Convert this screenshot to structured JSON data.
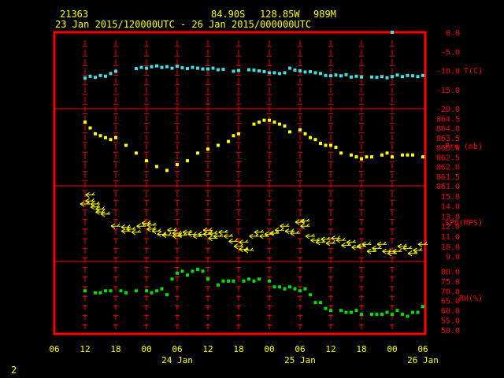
{
  "header": {
    "station": "21363",
    "lat": "84.90S",
    "lon": "128.85W",
    "elev": "989M",
    "range": "23 Jan 2015/120000UTC - 26 Jan 2015/000000UTC"
  },
  "page_number": "2",
  "colors": {
    "frame": "#ff0000",
    "grid": "#ff0000",
    "temp": "#40e0e0",
    "pressure": "#ffff00",
    "wind": "#ffff00",
    "rh": "#00e000",
    "text_red": "#ff0000",
    "text_yellow": "#ffff00"
  },
  "x_axis": {
    "ticks": [
      "06",
      "12",
      "18",
      "00",
      "06",
      "12",
      "18",
      "00",
      "06",
      "12",
      "18",
      "00",
      "06"
    ],
    "day_labels": [
      {
        "text": "24 Jan",
        "hour": 18
      },
      {
        "text": "25 Jan",
        "hour": 42
      },
      {
        "text": "26 Jan",
        "hour": 66
      }
    ]
  },
  "chart_data": [
    {
      "type": "scatter",
      "name": "T(C)",
      "ylabel": "T(C)",
      "ylim": [
        -20,
        0
      ],
      "yticks": [
        "0.0",
        "-5.0",
        "-10.0",
        "-15.0"
      ],
      "x": [
        0,
        1,
        2,
        3,
        4,
        5,
        6,
        10,
        11,
        12,
        13,
        14,
        15,
        16,
        17,
        18,
        19,
        20,
        21,
        22,
        23,
        24,
        25,
        26,
        27,
        29,
        30,
        32,
        33,
        34,
        35,
        36,
        37,
        38,
        39,
        40,
        41,
        42,
        43,
        44,
        45,
        46,
        47,
        48,
        49,
        50,
        51,
        52,
        53,
        54,
        56,
        57,
        58,
        59,
        60,
        61,
        62,
        63,
        64,
        65,
        66
      ],
      "y": [
        -12,
        -11.5,
        -11.8,
        -11.3,
        -11.5,
        -10.8,
        -10.2,
        -9.5,
        -9.2,
        -9.4,
        -9.0,
        -8.8,
        -9.2,
        -9.0,
        -9.4,
        -8.9,
        -9.3,
        -9.5,
        -9.2,
        -9.4,
        -9.6,
        -9.6,
        -9.4,
        -9.8,
        -9.7,
        -10.2,
        -10.0,
        -9.8,
        -9.9,
        -10.1,
        -10.3,
        -10.6,
        -10.6,
        -10.8,
        -10.6,
        -9.4,
        -9.9,
        -10.1,
        -10.4,
        -10.3,
        -10.6,
        -10.8,
        -11.3,
        -11.4,
        -11.2,
        -11.4,
        -11.1,
        -11.7,
        -11.5,
        -11.7,
        -11.7,
        -11.8,
        -11.6,
        -11.9,
        -11.6,
        -11.2,
        -11.6,
        -11.3,
        -11.4,
        -11.6,
        -11.3
      ],
      "outlier": {
        "x": 60,
        "y": 0
      }
    },
    {
      "type": "scatter",
      "name": "Pre (mb)",
      "ylabel": "Pre (mb)",
      "ylim": [
        861,
        865
      ],
      "yticks": [
        "864.5",
        "864.0",
        "863.5",
        "863.0",
        "862.5",
        "862.0",
        "861.5",
        "861.0"
      ],
      "x": [
        0,
        1,
        2,
        3,
        4,
        5,
        6,
        8,
        10,
        12,
        14,
        16,
        18,
        20,
        22,
        24,
        26,
        28,
        29,
        30,
        33,
        34,
        35,
        36,
        37,
        38,
        39,
        40,
        42,
        43,
        44,
        45,
        46,
        47,
        48,
        49,
        50,
        52,
        53,
        54,
        55,
        56,
        58,
        59,
        60,
        62,
        63,
        64,
        66
      ],
      "y": [
        864.3,
        864.0,
        863.7,
        863.6,
        863.5,
        863.4,
        863.5,
        863.1,
        862.7,
        862.3,
        862.0,
        861.8,
        862.1,
        862.3,
        862.7,
        862.9,
        863.1,
        863.3,
        863.6,
        863.7,
        864.2,
        864.3,
        864.4,
        864.4,
        864.3,
        864.2,
        864.1,
        863.8,
        863.9,
        863.7,
        863.5,
        863.4,
        863.2,
        863.1,
        863.1,
        863.0,
        862.7,
        862.6,
        862.5,
        862.4,
        862.5,
        862.5,
        862.6,
        862.7,
        862.5,
        862.6,
        862.6,
        862.6,
        862.5
      ]
    },
    {
      "type": "scatter",
      "name": "SPD(MPS)",
      "ylabel": "SPD(MPS)",
      "ylim": [
        8.5,
        16
      ],
      "yticks": [
        "15.0",
        "14.0",
        "13.0",
        "12.0",
        "11.0",
        "10.0",
        "9.0"
      ],
      "x": [
        0,
        1,
        1,
        2,
        2,
        3,
        3,
        4,
        6,
        8,
        8,
        9,
        10,
        11,
        12,
        13,
        13,
        14,
        15,
        16,
        17,
        18,
        18,
        19,
        20,
        21,
        22,
        23,
        24,
        24,
        25,
        25,
        26,
        27,
        28,
        29,
        30,
        31,
        31,
        32,
        33,
        34,
        35,
        36,
        37,
        38,
        39,
        40,
        41,
        42,
        43,
        43,
        44,
        45,
        46,
        47,
        48,
        49,
        50,
        51,
        52,
        53,
        54,
        55,
        56,
        57,
        58,
        59,
        60,
        61,
        62,
        63,
        64,
        65,
        66
      ],
      "y": [
        14.2,
        15.1,
        14.5,
        14.2,
        13.9,
        13.7,
        13.4,
        13.2,
        12.0,
        11.5,
        11.9,
        11.7,
        11.4,
        12.0,
        12.3,
        12.1,
        11.7,
        11.5,
        11.2,
        11.1,
        11.6,
        11.3,
        11.0,
        11.1,
        11.4,
        11.2,
        11.0,
        11.2,
        11.6,
        11.2,
        11.3,
        10.8,
        11.0,
        11.4,
        11.0,
        10.5,
        10.0,
        10.4,
        9.7,
        9.6,
        11.0,
        11.4,
        11.0,
        11.2,
        11.3,
        11.6,
        12.0,
        11.5,
        11.3,
        12.4,
        12.0,
        12.5,
        11.0,
        10.6,
        10.4,
        10.7,
        10.3,
        10.8,
        10.6,
        10.1,
        10.4,
        9.9,
        10.0,
        10.2,
        9.5,
        9.8,
        10.2,
        9.5,
        9.3,
        9.5,
        10.0,
        9.8,
        9.3,
        9.6,
        10.2
      ]
    },
    {
      "type": "scatter",
      "name": "RH(%)",
      "ylabel": "RH(%)",
      "ylim": [
        48,
        85
      ],
      "yticks": [
        "80.0",
        "75.0",
        "70.0",
        "65.0",
        "60.0",
        "55.0",
        "50.0"
      ],
      "x": [
        0,
        2,
        3,
        4,
        5,
        7,
        8,
        10,
        12,
        13,
        14,
        15,
        16,
        17,
        18,
        19,
        20,
        21,
        22,
        23,
        24,
        26,
        27,
        28,
        29,
        31,
        32,
        33,
        34,
        36,
        37,
        38,
        39,
        40,
        41,
        42,
        43,
        44,
        45,
        46,
        47,
        48,
        50,
        51,
        52,
        53,
        54,
        56,
        57,
        58,
        59,
        60,
        61,
        62,
        63,
        64,
        65,
        66
      ],
      "y": [
        70,
        69,
        69,
        70,
        70,
        70,
        69,
        70,
        70,
        69,
        70,
        71,
        68,
        76,
        79,
        80,
        78,
        80,
        81,
        80,
        76,
        73,
        75,
        75,
        75,
        75,
        76,
        75,
        76,
        75,
        72,
        72,
        71,
        72,
        71,
        70,
        71,
        68,
        64,
        64,
        61,
        60,
        60,
        59,
        59,
        60,
        58,
        58,
        58,
        58,
        59,
        58,
        60,
        58,
        57,
        59,
        59,
        62
      ]
    }
  ]
}
